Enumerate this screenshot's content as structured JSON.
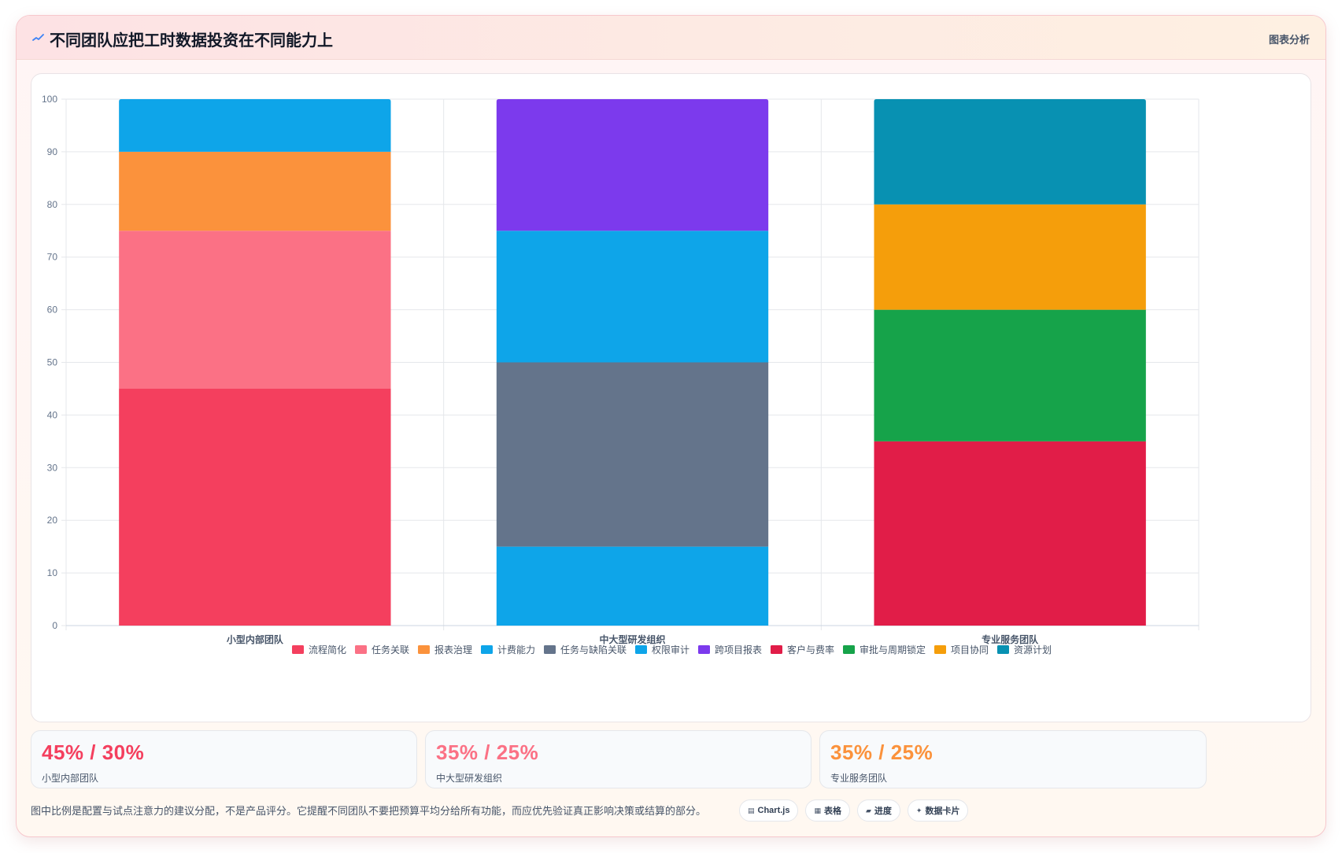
{
  "header": {
    "title": "不同团队应把工时数据投资在不同能力上",
    "action_label": "图表分析",
    "icon": "trend-line-icon"
  },
  "chart_data": {
    "type": "bar",
    "stacked": true,
    "categories": [
      "小型内部团队",
      "中大型研发组织",
      "专业服务团队"
    ],
    "ylim": [
      0,
      100
    ],
    "yticks": [
      0,
      10,
      20,
      30,
      40,
      50,
      60,
      70,
      80,
      90,
      100
    ],
    "grid": true,
    "legend_position": "bottom",
    "series": [
      {
        "name": "流程简化",
        "color": "#f43f5e",
        "values": [
          45,
          0,
          0
        ]
      },
      {
        "name": "任务关联",
        "color": "#fb7185",
        "values": [
          30,
          0,
          0
        ]
      },
      {
        "name": "报表治理",
        "color": "#fb923c",
        "values": [
          15,
          0,
          0
        ]
      },
      {
        "name": "计费能力",
        "color": "#0ea5e9",
        "values": [
          10,
          0,
          0
        ]
      },
      {
        "name": "任务与缺陷关联",
        "color": "#64748b",
        "values": [
          0,
          35,
          0
        ]
      },
      {
        "name": "权限审计",
        "color": "#0ea5e9",
        "values": [
          0,
          25,
          0
        ]
      },
      {
        "name": "跨项目报表",
        "color": "#7c3aed",
        "values": [
          0,
          25,
          0
        ]
      },
      {
        "name": "客户与费率",
        "color": "#e11d48",
        "values": [
          0,
          0,
          35
        ]
      },
      {
        "name": "审批与周期锁定",
        "color": "#16a34a",
        "values": [
          0,
          0,
          25
        ]
      },
      {
        "name": "项目协同",
        "color": "#f59e0b",
        "values": [
          0,
          0,
          20
        ]
      },
      {
        "name": "资源计划",
        "color": "#0891b2",
        "values": [
          0,
          0,
          20
        ]
      }
    ],
    "bottom_segment_mid": {
      "category": "中大型研发组织",
      "value": 15,
      "color": "#0ea5e9"
    }
  },
  "stats": [
    {
      "value": "45% / 30%",
      "label": "小型内部团队",
      "color": "#f43f5e"
    },
    {
      "value": "35% / 25%",
      "label": "中大型研发组织",
      "color": "#fb7185"
    },
    {
      "value": "35% / 25%",
      "label": "专业服务团队",
      "color": "#fb923c"
    }
  ],
  "note": "图中比例是配置与试点注意力的建议分配，不是产品评分。它提醒不同团队不要把预算平均分给所有功能，而应优先验证真正影响决策或结算的部分。",
  "tags": [
    {
      "icon": "▤",
      "label": "Chart.js"
    },
    {
      "icon": "▦",
      "label": "表格"
    },
    {
      "icon": "▰",
      "label": "进度"
    },
    {
      "icon": "✦",
      "label": "数据卡片"
    }
  ]
}
